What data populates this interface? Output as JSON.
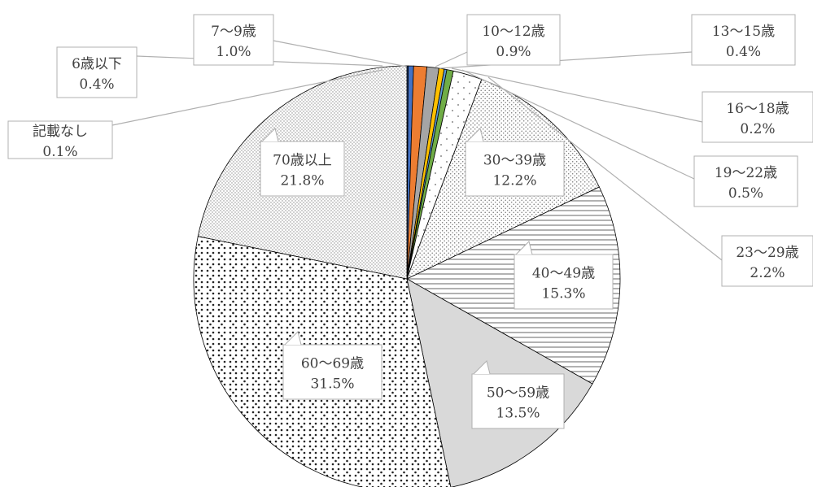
{
  "chart_data": {
    "type": "pie",
    "title": "",
    "start_angle_deg": 0,
    "direction": "clockwise",
    "slices": [
      {
        "label": "記載なし",
        "value": 0.1,
        "display_value": "0.1%",
        "color": "#1f3d7a",
        "pattern": "solid"
      },
      {
        "label": "6歳以下",
        "value": 0.4,
        "display_value": "0.4%",
        "color": "#4472c4",
        "pattern": "solid"
      },
      {
        "label": "7～9歳",
        "value": 1.0,
        "display_value": "1.0%",
        "color": "#ed7d31",
        "pattern": "solid"
      },
      {
        "label": "10～12歳",
        "value": 0.9,
        "display_value": "0.9%",
        "color": "#a5a5a5",
        "pattern": "solid"
      },
      {
        "label": "13～15歳",
        "value": 0.4,
        "display_value": "0.4%",
        "color": "#ffc000",
        "pattern": "solid"
      },
      {
        "label": "16～18歳",
        "value": 0.2,
        "display_value": "0.2%",
        "color": "#5b9bd5",
        "pattern": "solid"
      },
      {
        "label": "19～22歳",
        "value": 0.5,
        "display_value": "0.5%",
        "color": "#70ad47",
        "pattern": "solid"
      },
      {
        "label": "23～29歳",
        "value": 2.2,
        "display_value": "2.2%",
        "color": "#ffffff",
        "pattern": "sparse-dots"
      },
      {
        "label": "30～39歳",
        "value": 12.2,
        "display_value": "12.2%",
        "color": "#ffffff",
        "pattern": "dense-dots"
      },
      {
        "label": "40～49歳",
        "value": 15.3,
        "display_value": "15.3%",
        "color": "#ffffff",
        "pattern": "horizontal-lines"
      },
      {
        "label": "50～59歳",
        "value": 13.5,
        "display_value": "13.5%",
        "color": "#d9d9d9",
        "pattern": "solid"
      },
      {
        "label": "60～69歳",
        "value": 31.5,
        "display_value": "31.5%",
        "color": "#ffffff",
        "pattern": "diamond-dots"
      },
      {
        "label": "70歳以上",
        "value": 21.8,
        "display_value": "21.8%",
        "color": "#ffffff",
        "pattern": "fine-dots"
      }
    ]
  }
}
